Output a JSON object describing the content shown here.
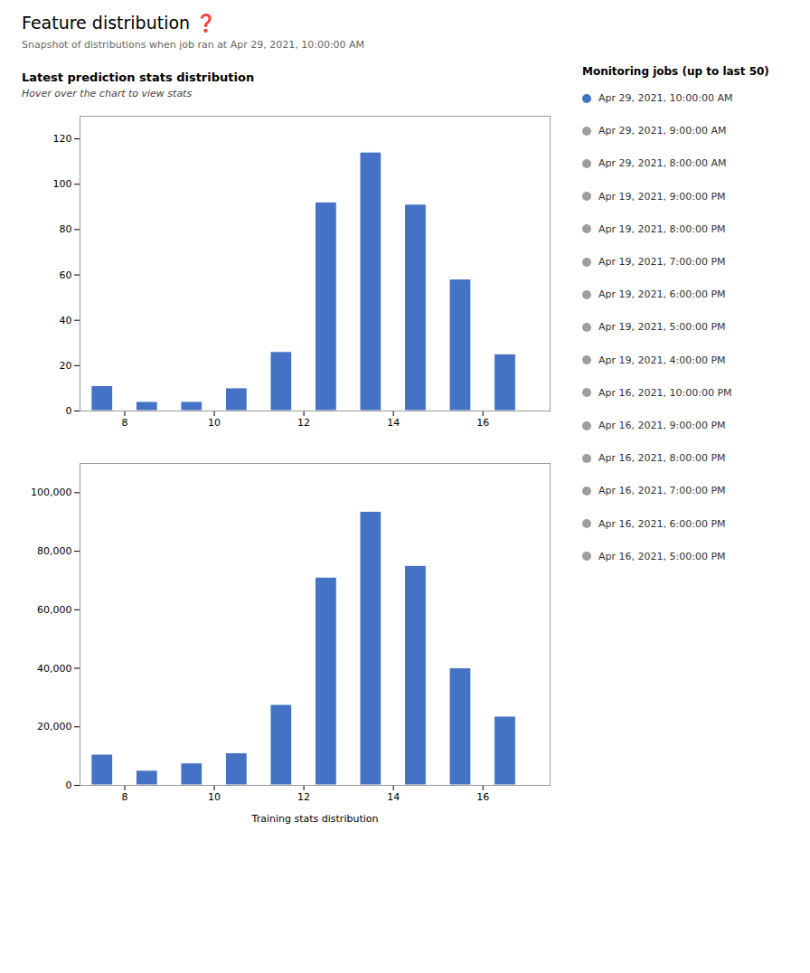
{
  "title": "Feature distribution ❓",
  "subtitle": "Snapshot of distributions when job ran at Apr 29, 2021, 10:00:00 AM",
  "legend_title": "Monitoring jobs (up to last 50)",
  "legend_entries": [
    {
      "name": "Apr 29, 2021, 10:00:00 AM",
      "color": "#4472C4"
    },
    {
      "name": "Apr 29, 2021, 9:00:00 AM",
      "color": "#9E9E9E"
    },
    {
      "name": "Apr 29, 2021, 8:00:00 AM",
      "color": "#9E9E9E"
    },
    {
      "name": "Apr 19, 2021, 9:00:00 PM",
      "color": "#9E9E9E"
    },
    {
      "name": "Apr 19, 2021, 8:00:00 PM",
      "color": "#9E9E9E"
    },
    {
      "name": "Apr 19, 2021, 7:00:00 PM",
      "color": "#9E9E9E"
    },
    {
      "name": "Apr 19, 2021, 6:00:00 PM",
      "color": "#9E9E9E"
    },
    {
      "name": "Apr 19, 2021, 5:00:00 PM",
      "color": "#9E9E9E"
    },
    {
      "name": "Apr 19, 2021, 4:00:00 PM",
      "color": "#9E9E9E"
    },
    {
      "name": "Apr 16, 2021, 10:00:00 PM",
      "color": "#9E9E9E"
    },
    {
      "name": "Apr 16, 2021, 9:00:00 PM",
      "color": "#9E9E9E"
    },
    {
      "name": "Apr 16, 2021, 8:00:00 PM",
      "color": "#9E9E9E"
    },
    {
      "name": "Apr 16, 2021, 7:00:00 PM",
      "color": "#9E9E9E"
    },
    {
      "name": "Apr 16, 2021, 6:00:00 PM",
      "color": "#9E9E9E"
    },
    {
      "name": "Apr 16, 2021, 5:00:00 PM",
      "color": "#9E9E9E"
    }
  ],
  "chart_data": [
    {
      "type": "bar",
      "title": "Latest prediction stats distribution",
      "subtitle": "Hover over the chart to view stats",
      "x": [
        7.5,
        8.5,
        9.5,
        10.5,
        11.5,
        12.5,
        13.5,
        14.5,
        15.5,
        16.5
      ],
      "values": [
        11,
        4,
        4,
        10,
        26,
        92,
        114,
        91,
        58,
        25
      ],
      "color": "#4472C4",
      "xlim": [
        7.0,
        17.5
      ],
      "xticks": [
        8,
        10,
        12,
        14,
        16
      ],
      "ylim": [
        0,
        130
      ],
      "yticks": [
        0,
        20,
        40,
        60,
        80,
        100,
        120
      ],
      "grid": false
    },
    {
      "type": "bar",
      "xlabel": "Training stats distribution",
      "x": [
        7.5,
        8.5,
        9.5,
        10.5,
        11.5,
        12.5,
        13.5,
        14.5,
        15.5,
        16.5
      ],
      "values": [
        10500,
        5000,
        7500,
        11000,
        27500,
        71000,
        93500,
        75000,
        40000,
        23500
      ],
      "color": "#4472C4",
      "xlim": [
        7.0,
        17.5
      ],
      "xticks": [
        8,
        10,
        12,
        14,
        16
      ],
      "ylim": [
        0,
        110000
      ],
      "yticks": [
        0,
        {
          "value": 20000,
          "label": "20,000"
        },
        {
          "value": 40000,
          "label": "40,000"
        },
        {
          "value": 60000,
          "label": "60,000"
        },
        {
          "value": 80000,
          "label": "80,000"
        },
        {
          "value": 100000,
          "label": "100,000"
        }
      ],
      "grid": false
    }
  ]
}
